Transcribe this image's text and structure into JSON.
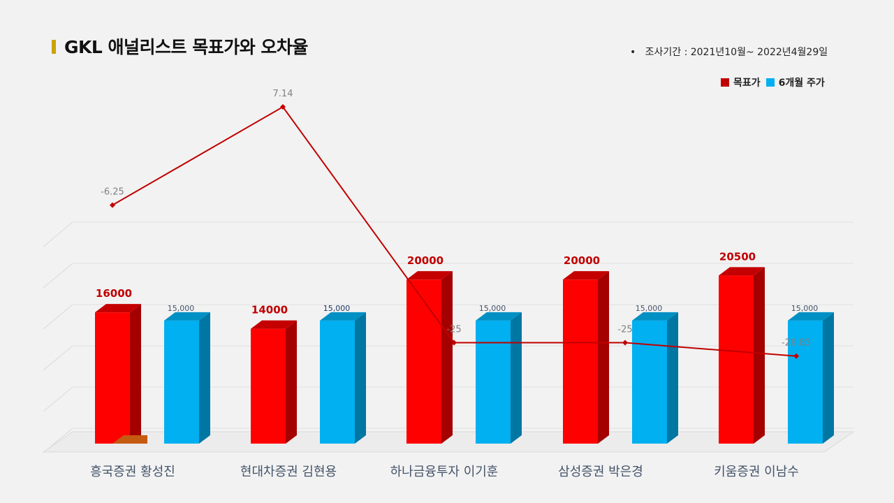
{
  "title": "GKL 애널리스트 목표가와 오차율",
  "period": "조사기간 : 2021년10월~ 2022년4월29일",
  "chart_data": [
    {
      "type": "line",
      "categories": [
        "흥국증권 황성진",
        "현대차증권 김현용",
        "하나금융투자 이기훈",
        "삼성증권 박은경",
        "키움증권 이남수"
      ],
      "series": [
        {
          "values": [
            -6.25,
            7.14,
            -25,
            -25,
            -26.83
          ]
        }
      ],
      "data_labels": [
        "-6.25",
        "7.14",
        "-25",
        "-25",
        "-26.83"
      ],
      "color": "#c00000"
    },
    {
      "type": "bar",
      "categories": [
        "흥국증권 황성진",
        "현대차증권 김현용",
        "하나금융투자 이기훈",
        "삼성증권 박은경",
        "키움증권 이남수"
      ],
      "series": [
        {
          "name": "목표가",
          "values": [
            16000,
            14000,
            20000,
            20000,
            20500
          ],
          "labels": [
            "16000",
            "14000",
            "20000",
            "20000",
            "20500"
          ],
          "color": "#ff0000"
        },
        {
          "name": "6개월 주가",
          "values": [
            15000,
            15000,
            15000,
            15000,
            15000
          ],
          "labels": [
            "15,000",
            "15,000",
            "15,000",
            "15,000",
            "15,000"
          ],
          "color": "#00b0f0"
        }
      ],
      "legend_position": "top-right",
      "grid": true,
      "ylim": [
        0,
        27000
      ]
    }
  ]
}
